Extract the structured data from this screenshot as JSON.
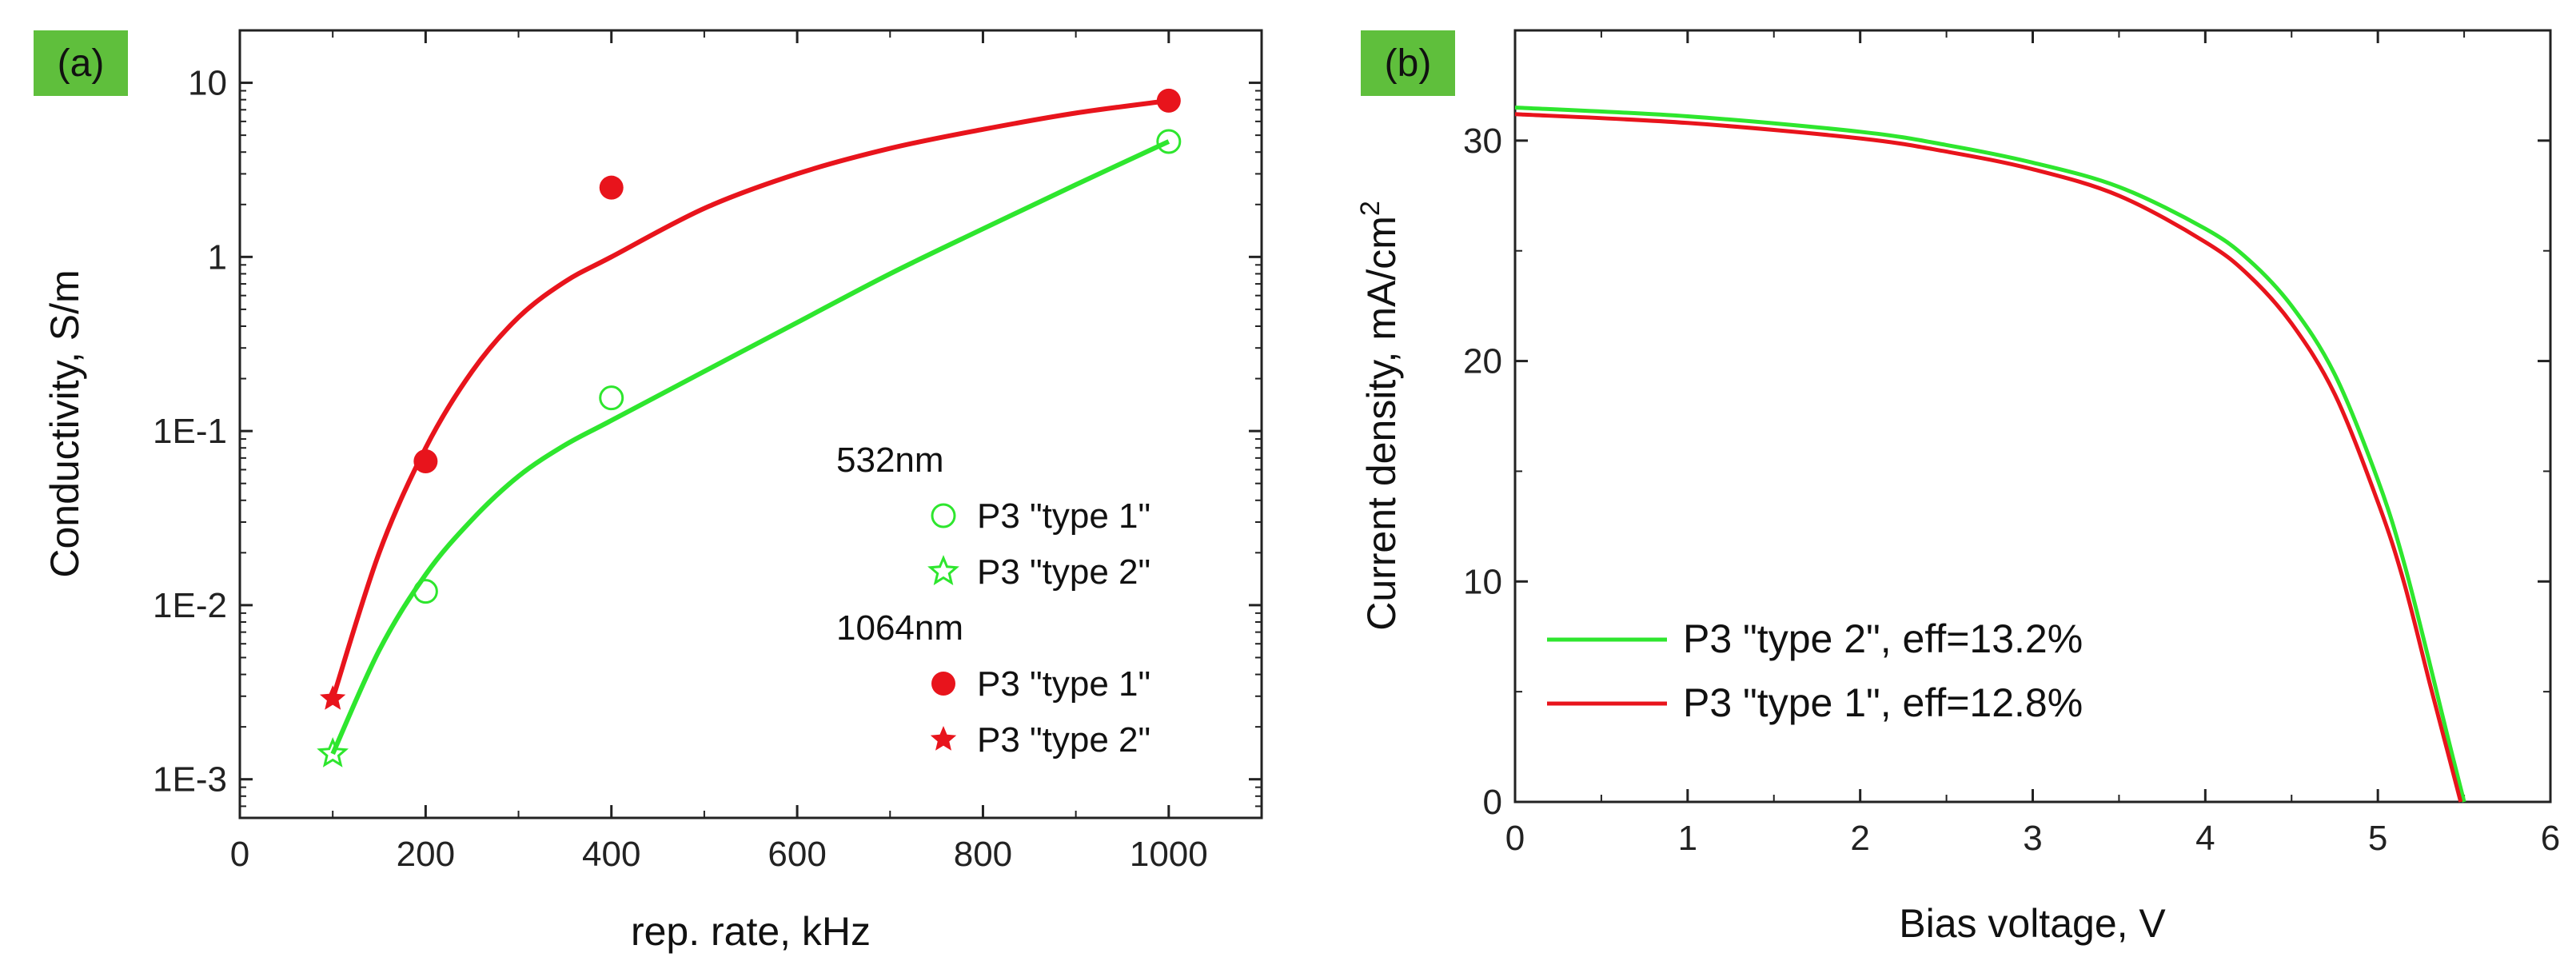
{
  "colors": {
    "red": "#e8141c",
    "green": "#2ee62e",
    "panel_bg": "#5fbf3c",
    "axis": "#222222"
  },
  "chart_data": [
    {
      "type": "scatter",
      "panel_label": "(a)",
      "xlabel": "rep. rate, kHz",
      "ylabel": "Conductivity, S/m",
      "xlim": [
        0,
        1100
      ],
      "ylim": [
        0.0006,
        20
      ],
      "yscale": "log",
      "xticks": [
        0,
        200,
        400,
        600,
        800,
        1000
      ],
      "xtick_labels": [
        "0",
        "200",
        "400",
        "600",
        "800",
        "1000"
      ],
      "yticks": [
        0.001,
        0.01,
        0.1,
        1,
        10
      ],
      "ytick_labels": [
        "1E-3",
        "1E-2",
        "1E-1",
        "1",
        "10"
      ],
      "legend": {
        "group1_title": "532nm",
        "group2_title": "1064nm",
        "entries": [
          {
            "label": "P3 \"type 1\"",
            "marker": "circle-open",
            "color": "#2ee62e"
          },
          {
            "label": "P3 \"type 2\"",
            "marker": "star-open",
            "color": "#2ee62e"
          },
          {
            "label": "P3 \"type 1\"",
            "marker": "circle-filled",
            "color": "#e8141c"
          },
          {
            "label": "P3 \"type 2\"",
            "marker": "star-filled",
            "color": "#e8141c"
          }
        ]
      },
      "series": [
        {
          "name": "532nm P3 type 1",
          "marker": "circle-open",
          "color": "#2ee62e",
          "x": [
            200,
            400,
            1000
          ],
          "y": [
            0.012,
            0.155,
            4.6
          ]
        },
        {
          "name": "532nm P3 type 2",
          "marker": "star-open",
          "color": "#2ee62e",
          "x": [
            100
          ],
          "y": [
            0.0014
          ]
        },
        {
          "name": "1064nm P3 type 1",
          "marker": "circle-filled",
          "color": "#e8141c",
          "x": [
            200,
            400,
            1000
          ],
          "y": [
            0.067,
            2.5,
            7.9
          ]
        },
        {
          "name": "1064nm P3 type 2",
          "marker": "star-filled",
          "color": "#e8141c",
          "x": [
            100
          ],
          "y": [
            0.0029
          ]
        }
      ],
      "fits": [
        {
          "name": "red fit",
          "color": "#e8141c",
          "x": [
            100,
            150,
            200,
            250,
            300,
            350,
            400,
            500,
            600,
            700,
            800,
            900,
            1000
          ],
          "y": [
            0.0029,
            0.02,
            0.08,
            0.22,
            0.45,
            0.72,
            1.0,
            1.9,
            3.0,
            4.2,
            5.4,
            6.7,
            7.9
          ]
        },
        {
          "name": "green fit",
          "color": "#2ee62e",
          "x": [
            100,
            150,
            200,
            250,
            300,
            350,
            400,
            500,
            600,
            700,
            800,
            900,
            1000
          ],
          "y": [
            0.0014,
            0.0055,
            0.015,
            0.031,
            0.055,
            0.083,
            0.115,
            0.22,
            0.42,
            0.8,
            1.45,
            2.6,
            4.6
          ]
        }
      ]
    },
    {
      "type": "line",
      "panel_label": "(b)",
      "xlabel": "Bias voltage, V",
      "ylabel": "Current density, mA/cm",
      "ylabel_sup": "2",
      "xlim": [
        0,
        6
      ],
      "ylim": [
        0,
        35
      ],
      "xticks": [
        0,
        1,
        2,
        3,
        4,
        5,
        6
      ],
      "xtick_labels": [
        "0",
        "1",
        "2",
        "3",
        "4",
        "5",
        "6"
      ],
      "yticks": [
        0,
        10,
        20,
        30
      ],
      "ytick_labels": [
        "0",
        "10",
        "20",
        "30"
      ],
      "legend": [
        {
          "label": "P3 \"type 2\", eff=13.2%",
          "color": "#2ee62e"
        },
        {
          "label": "P3 \"type 1\", eff=12.8%",
          "color": "#e8141c"
        }
      ],
      "series": [
        {
          "name": "P3 \"type 2\", eff=13.2%",
          "color": "#2ee62e",
          "x": [
            0,
            1,
            2,
            2.5,
            3,
            3.5,
            4,
            4.25,
            4.5,
            4.75,
            5,
            5.15,
            5.3,
            5.4,
            5.5
          ],
          "y": [
            31.5,
            31.1,
            30.4,
            29.8,
            29.0,
            27.9,
            26.0,
            24.6,
            22.5,
            19.4,
            14.6,
            10.9,
            6.3,
            3.1,
            0
          ]
        },
        {
          "name": "P3 \"type 1\", eff=12.8%",
          "color": "#e8141c",
          "x": [
            0,
            1,
            2,
            2.5,
            3,
            3.5,
            4,
            4.25,
            4.5,
            4.75,
            5,
            5.15,
            5.3,
            5.4,
            5.48
          ],
          "y": [
            31.2,
            30.8,
            30.1,
            29.5,
            28.7,
            27.5,
            25.4,
            23.9,
            21.7,
            18.5,
            13.6,
            10.0,
            5.4,
            2.4,
            0
          ]
        }
      ]
    }
  ]
}
